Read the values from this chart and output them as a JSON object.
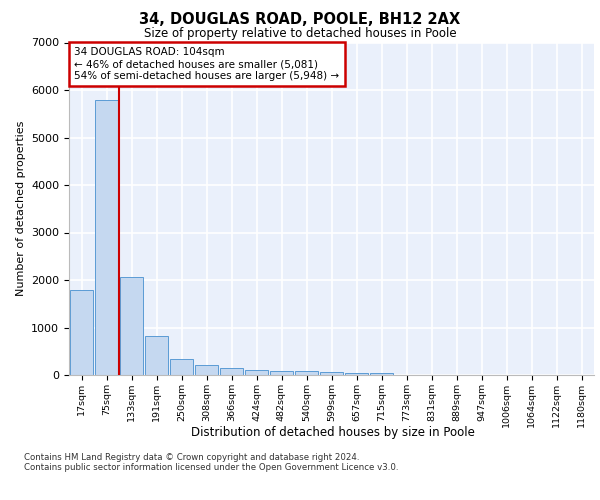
{
  "title1": "34, DOUGLAS ROAD, POOLE, BH12 2AX",
  "title2": "Size of property relative to detached houses in Poole",
  "xlabel": "Distribution of detached houses by size in Poole",
  "ylabel": "Number of detached properties",
  "categories": [
    "17sqm",
    "75sqm",
    "133sqm",
    "191sqm",
    "250sqm",
    "308sqm",
    "366sqm",
    "424sqm",
    "482sqm",
    "540sqm",
    "599sqm",
    "657sqm",
    "715sqm",
    "773sqm",
    "831sqm",
    "889sqm",
    "947sqm",
    "1006sqm",
    "1064sqm",
    "1122sqm",
    "1180sqm"
  ],
  "values": [
    1780,
    5780,
    2060,
    830,
    340,
    220,
    150,
    115,
    90,
    75,
    65,
    50,
    40,
    0,
    0,
    0,
    0,
    0,
    0,
    0,
    0
  ],
  "bar_color": "#c5d8f0",
  "bar_edge_color": "#5b9bd5",
  "annotation_label": "34 DOUGLAS ROAD: 104sqm",
  "annotation_line1": "← 46% of detached houses are smaller (5,081)",
  "annotation_line2": "54% of semi-detached houses are larger (5,948) →",
  "annotation_box_color": "#ffffff",
  "annotation_box_edge": "#cc0000",
  "line_color": "#cc0000",
  "ylim": [
    0,
    7000
  ],
  "yticks": [
    0,
    1000,
    2000,
    3000,
    4000,
    5000,
    6000,
    7000
  ],
  "bg_color": "#eaf0fb",
  "grid_color": "#ffffff",
  "footnote1": "Contains HM Land Registry data © Crown copyright and database right 2024.",
  "footnote2": "Contains public sector information licensed under the Open Government Licence v3.0."
}
